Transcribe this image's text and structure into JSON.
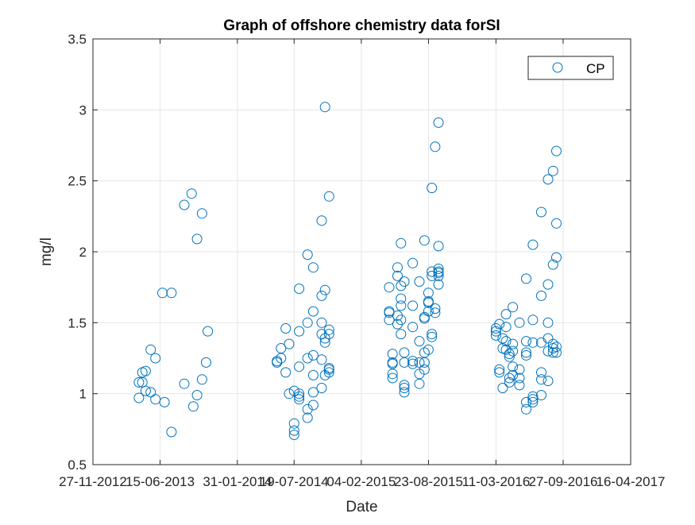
{
  "chart_data": {
    "type": "scatter",
    "title": "Graph of offshore chemistry data forSI",
    "xlabel": "Date",
    "ylabel": "mg/l",
    "ylim": [
      0.5,
      3.5
    ],
    "xlim": [
      "2012-11-27",
      "2017-04-16"
    ],
    "yticks": [
      "0.5",
      "1",
      "1.5",
      "2",
      "2.5",
      "3",
      "3.5"
    ],
    "xticks": [
      "27-11-2012",
      "15-06-2013",
      "31-01-2014",
      "19-07-2014",
      "04-02-2015",
      "23-08-2015",
      "11-03-2016",
      "27-09-2016",
      "16-04-2017"
    ],
    "grid": true,
    "legend_position": "top-right",
    "marker_color": "#0072BD",
    "series": [
      {
        "name": "CP",
        "marker": "circle",
        "points": [
          [
            "2013-04-13",
            0.97
          ],
          [
            "2013-04-13",
            1.08
          ],
          [
            "2013-04-23",
            1.08
          ],
          [
            "2013-04-23",
            1.15
          ],
          [
            "2013-05-03",
            1.16
          ],
          [
            "2013-05-03",
            1.02
          ],
          [
            "2013-05-18",
            1.31
          ],
          [
            "2013-05-18",
            1.01
          ],
          [
            "2013-06-01",
            1.25
          ],
          [
            "2013-06-01",
            0.96
          ],
          [
            "2013-06-28",
            0.94
          ],
          [
            "2013-06-22",
            1.71
          ],
          [
            "2013-07-19",
            1.71
          ],
          [
            "2013-07-19",
            0.73
          ],
          [
            "2013-08-26",
            2.33
          ],
          [
            "2013-08-26",
            1.07
          ],
          [
            "2013-09-22",
            0.91
          ],
          [
            "2013-09-17",
            2.41
          ],
          [
            "2013-10-03",
            2.09
          ],
          [
            "2013-10-03",
            0.99
          ],
          [
            "2013-10-18",
            1.1
          ],
          [
            "2013-10-18",
            2.27
          ],
          [
            "2013-11-04",
            1.44
          ],
          [
            "2013-10-30",
            1.22
          ],
          [
            "2014-05-29",
            1.23
          ],
          [
            "2014-05-29",
            1.22
          ],
          [
            "2014-06-10",
            1.25
          ],
          [
            "2014-06-10",
            1.32
          ],
          [
            "2014-06-24",
            1.15
          ],
          [
            "2014-06-24",
            1.46
          ],
          [
            "2014-07-04",
            1.0
          ],
          [
            "2014-07-04",
            1.35
          ],
          [
            "2014-07-19",
            0.79
          ],
          [
            "2014-07-19",
            0.74
          ],
          [
            "2014-07-19",
            0.71
          ],
          [
            "2014-07-19",
            1.02
          ],
          [
            "2014-08-03",
            1.0
          ],
          [
            "2014-08-03",
            0.96
          ],
          [
            "2014-08-03",
            0.98
          ],
          [
            "2014-08-03",
            1.44
          ],
          [
            "2014-08-03",
            1.19
          ],
          [
            "2014-08-03",
            1.74
          ],
          [
            "2014-08-28",
            0.83
          ],
          [
            "2014-08-28",
            0.89
          ],
          [
            "2014-08-28",
            1.25
          ],
          [
            "2014-08-28",
            1.5
          ],
          [
            "2014-08-28",
            1.98
          ],
          [
            "2014-09-14",
            0.92
          ],
          [
            "2014-09-14",
            1.13
          ],
          [
            "2014-09-14",
            1.27
          ],
          [
            "2014-09-14",
            1.89
          ],
          [
            "2014-09-14",
            1.58
          ],
          [
            "2014-09-14",
            1.01
          ],
          [
            "2014-10-09",
            1.04
          ],
          [
            "2014-10-09",
            1.24
          ],
          [
            "2014-10-09",
            1.42
          ],
          [
            "2014-10-09",
            1.5
          ],
          [
            "2014-10-09",
            1.69
          ],
          [
            "2014-10-09",
            2.22
          ],
          [
            "2014-10-19",
            1.36
          ],
          [
            "2014-10-19",
            1.39
          ],
          [
            "2014-10-19",
            1.73
          ],
          [
            "2014-10-19",
            3.02
          ],
          [
            "2014-10-19",
            1.13
          ],
          [
            "2014-10-31",
            1.18
          ],
          [
            "2014-10-31",
            1.17
          ],
          [
            "2014-10-31",
            1.15
          ],
          [
            "2014-10-31",
            1.42
          ],
          [
            "2014-10-31",
            1.45
          ],
          [
            "2014-10-31",
            2.39
          ],
          [
            "2015-04-28",
            1.75
          ],
          [
            "2015-04-28",
            1.58
          ],
          [
            "2015-04-28",
            1.52
          ],
          [
            "2015-04-28",
            1.57
          ],
          [
            "2015-05-08",
            1.28
          ],
          [
            "2015-05-08",
            1.22
          ],
          [
            "2015-05-08",
            1.21
          ],
          [
            "2015-05-08",
            1.14
          ],
          [
            "2015-05-08",
            1.11
          ],
          [
            "2015-05-23",
            1.89
          ],
          [
            "2015-05-23",
            1.55
          ],
          [
            "2015-05-23",
            1.83
          ],
          [
            "2015-05-23",
            1.49
          ],
          [
            "2015-06-02",
            1.76
          ],
          [
            "2015-06-02",
            1.67
          ],
          [
            "2015-06-02",
            1.62
          ],
          [
            "2015-06-02",
            1.52
          ],
          [
            "2015-06-02",
            1.42
          ],
          [
            "2015-06-02",
            2.06
          ],
          [
            "2015-06-12",
            1.79
          ],
          [
            "2015-06-12",
            1.29
          ],
          [
            "2015-06-12",
            1.22
          ],
          [
            "2015-06-12",
            1.06
          ],
          [
            "2015-06-12",
            1.04
          ],
          [
            "2015-06-12",
            1.01
          ],
          [
            "2015-07-07",
            1.92
          ],
          [
            "2015-07-07",
            1.62
          ],
          [
            "2015-07-07",
            1.47
          ],
          [
            "2015-07-07",
            1.23
          ],
          [
            "2015-07-07",
            1.21
          ],
          [
            "2015-07-27",
            1.79
          ],
          [
            "2015-07-27",
            1.37
          ],
          [
            "2015-07-27",
            1.22
          ],
          [
            "2015-07-27",
            1.14
          ],
          [
            "2015-07-27",
            1.07
          ],
          [
            "2015-08-11",
            2.08
          ],
          [
            "2015-08-11",
            1.54
          ],
          [
            "2015-08-11",
            1.53
          ],
          [
            "2015-08-11",
            1.29
          ],
          [
            "2015-08-11",
            1.22
          ],
          [
            "2015-08-11",
            1.17
          ],
          [
            "2015-08-23",
            1.71
          ],
          [
            "2015-08-23",
            1.65
          ],
          [
            "2015-08-23",
            1.64
          ],
          [
            "2015-08-23",
            1.58
          ],
          [
            "2015-08-23",
            1.31
          ],
          [
            "2015-09-02",
            2.45
          ],
          [
            "2015-09-02",
            1.86
          ],
          [
            "2015-09-02",
            1.83
          ],
          [
            "2015-09-02",
            1.42
          ],
          [
            "2015-09-02",
            1.4
          ],
          [
            "2015-09-12",
            2.74
          ],
          [
            "2015-09-12",
            1.6
          ],
          [
            "2015-09-12",
            1.57
          ],
          [
            "2015-09-22",
            2.91
          ],
          [
            "2015-09-22",
            2.04
          ],
          [
            "2015-09-22",
            1.88
          ],
          [
            "2015-09-22",
            1.86
          ],
          [
            "2015-09-22",
            1.85
          ],
          [
            "2015-09-22",
            1.83
          ],
          [
            "2015-09-22",
            1.77
          ],
          [
            "2016-03-11",
            1.46
          ],
          [
            "2016-03-11",
            1.41
          ],
          [
            "2016-03-11",
            1.44
          ],
          [
            "2016-03-21",
            1.49
          ],
          [
            "2016-03-21",
            1.17
          ],
          [
            "2016-03-21",
            1.15
          ],
          [
            "2016-03-31",
            1.39
          ],
          [
            "2016-03-31",
            1.32
          ],
          [
            "2016-03-31",
            1.04
          ],
          [
            "2016-04-10",
            1.56
          ],
          [
            "2016-04-10",
            1.47
          ],
          [
            "2016-04-10",
            1.37
          ],
          [
            "2016-04-10",
            1.31
          ],
          [
            "2016-04-20",
            1.28
          ],
          [
            "2016-04-20",
            1.26
          ],
          [
            "2016-04-20",
            1.11
          ],
          [
            "2016-04-20",
            1.08
          ],
          [
            "2016-04-30",
            1.61
          ],
          [
            "2016-04-30",
            1.35
          ],
          [
            "2016-04-30",
            1.3
          ],
          [
            "2016-04-30",
            1.19
          ],
          [
            "2016-04-30",
            1.13
          ],
          [
            "2016-05-20",
            1.5
          ],
          [
            "2016-05-20",
            1.17
          ],
          [
            "2016-05-20",
            1.11
          ],
          [
            "2016-05-20",
            1.06
          ],
          [
            "2016-06-09",
            1.81
          ],
          [
            "2016-06-09",
            1.37
          ],
          [
            "2016-06-09",
            1.29
          ],
          [
            "2016-06-09",
            1.27
          ],
          [
            "2016-06-09",
            0.94
          ],
          [
            "2016-06-09",
            0.89
          ],
          [
            "2016-06-29",
            2.05
          ],
          [
            "2016-06-29",
            1.52
          ],
          [
            "2016-06-29",
            1.36
          ],
          [
            "2016-06-29",
            0.98
          ],
          [
            "2016-06-29",
            0.96
          ],
          [
            "2016-06-29",
            0.94
          ],
          [
            "2016-07-24",
            2.28
          ],
          [
            "2016-07-24",
            1.69
          ],
          [
            "2016-07-24",
            1.36
          ],
          [
            "2016-07-24",
            1.15
          ],
          [
            "2016-07-24",
            1.1
          ],
          [
            "2016-07-24",
            0.99
          ],
          [
            "2016-08-13",
            2.51
          ],
          [
            "2016-08-13",
            1.77
          ],
          [
            "2016-08-13",
            1.5
          ],
          [
            "2016-08-13",
            1.39
          ],
          [
            "2016-08-13",
            1.3
          ],
          [
            "2016-08-13",
            1.09
          ],
          [
            "2016-08-28",
            2.57
          ],
          [
            "2016-08-28",
            1.91
          ],
          [
            "2016-08-28",
            1.35
          ],
          [
            "2016-08-28",
            1.32
          ],
          [
            "2016-08-28",
            1.29
          ],
          [
            "2016-09-07",
            2.71
          ],
          [
            "2016-09-07",
            2.2
          ],
          [
            "2016-09-07",
            1.96
          ],
          [
            "2016-09-07",
            1.33
          ],
          [
            "2016-09-07",
            1.29
          ]
        ]
      }
    ]
  }
}
